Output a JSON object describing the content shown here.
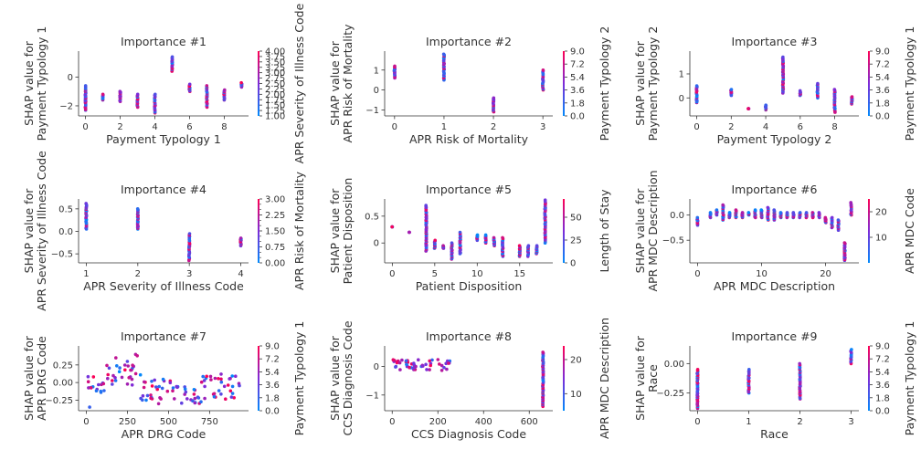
{
  "colors": {
    "low": "#008afb",
    "mid": "#7e2bd8",
    "high": "#ff0052",
    "axis": "#333333"
  },
  "chart_data": [
    {
      "type": "scatter",
      "title": "Importance #1",
      "xlabel": "Payment Typology 1",
      "ylabel": [
        "SHAP value for",
        "Payment Typology 1"
      ],
      "colorbar_label": "APR Severity of Illness Code",
      "xlim": [
        -0.4,
        9.4
      ],
      "ylim": [
        -2.7,
        1.8
      ],
      "xticks": [
        0,
        2,
        4,
        6,
        8
      ],
      "yticks": [
        -2,
        0
      ],
      "cbar_range": [
        1,
        4
      ],
      "cbar_ticks": [
        "1.00",
        "1.25",
        "1.50",
        "1.75",
        "2.00",
        "2.25",
        "2.50",
        "2.75",
        "3.00",
        "3.25",
        "3.50",
        "3.75",
        "4.00"
      ],
      "groups": [
        {
          "x": 0,
          "ymin": -2.3,
          "ymax": -0.6
        },
        {
          "x": 1,
          "ymin": -1.6,
          "ymax": -1.2
        },
        {
          "x": 2,
          "ymin": -1.7,
          "ymax": -1.0
        },
        {
          "x": 3,
          "ymin": -2.1,
          "ymax": -1.2
        },
        {
          "x": 4,
          "ymin": -2.5,
          "ymax": -1.2
        },
        {
          "x": 5,
          "ymin": 0.4,
          "ymax": 1.4
        },
        {
          "x": 6,
          "ymin": -1.0,
          "ymax": -0.5
        },
        {
          "x": 7,
          "ymin": -2.1,
          "ymax": -0.6
        },
        {
          "x": 8,
          "ymin": -1.6,
          "ymax": -0.9
        },
        {
          "x": 9,
          "ymin": -0.7,
          "ymax": -0.4
        }
      ]
    },
    {
      "type": "scatter",
      "title": "Importance #2",
      "xlabel": "APR Risk of Mortality",
      "ylabel": [
        "SHAP value for",
        "APR Risk of Mortality"
      ],
      "colorbar_label": "Payment Typology 2",
      "xlim": [
        -0.2,
        3.2
      ],
      "ylim": [
        -1.3,
        1.95
      ],
      "xticks": [
        0,
        1,
        2,
        3
      ],
      "yticks": [
        -1,
        0,
        1
      ],
      "cbar_range": [
        0,
        9
      ],
      "cbar_ticks": [
        "0.0",
        "1.8",
        "3.6",
        "5.4",
        "7.2",
        "9.0"
      ],
      "groups": [
        {
          "x": 0,
          "ymin": 0.6,
          "ymax": 1.2
        },
        {
          "x": 1,
          "ymin": 0.5,
          "ymax": 1.8
        },
        {
          "x": 2,
          "ymin": -1.1,
          "ymax": -0.4
        },
        {
          "x": 3,
          "ymin": 0.0,
          "ymax": 1.0
        }
      ]
    },
    {
      "type": "scatter",
      "title": "Importance #3",
      "xlabel": "Payment Typology 2",
      "ylabel": [
        "SHAP value for",
        "Payment Typology 2"
      ],
      "colorbar_label": "Payment Typology 1",
      "xlim": [
        -0.4,
        9.4
      ],
      "ylim": [
        -0.75,
        1.95
      ],
      "xticks": [
        0,
        2,
        4,
        6,
        8
      ],
      "yticks": [
        0,
        1
      ],
      "cbar_range": [
        0,
        9
      ],
      "cbar_ticks": [
        "0.0",
        "1.8",
        "3.6",
        "5.4",
        "7.2",
        "9.0"
      ],
      "groups": [
        {
          "x": 0,
          "ymin": -0.2,
          "ymax": 0.5
        },
        {
          "x": 2,
          "ymin": 0.1,
          "ymax": 0.35
        },
        {
          "x": 3,
          "ymin": -0.45,
          "ymax": -0.45
        },
        {
          "x": 4,
          "ymin": -0.5,
          "ymax": -0.3
        },
        {
          "x": 5,
          "ymin": 0.2,
          "ymax": 1.7
        },
        {
          "x": 6,
          "ymin": 0.1,
          "ymax": 0.3
        },
        {
          "x": 7,
          "ymin": 0.0,
          "ymax": 0.6
        },
        {
          "x": 8,
          "ymin": -0.6,
          "ymax": 0.35
        },
        {
          "x": 9,
          "ymin": -0.25,
          "ymax": 0.05
        }
      ]
    },
    {
      "type": "scatter",
      "title": "Importance #4",
      "xlabel": "APR Severity of Illness Code",
      "ylabel": [
        "SHAP value for",
        "APR Severity of Illness Code"
      ],
      "colorbar_label": "APR Risk of Mortality",
      "xlim": [
        0.85,
        4.15
      ],
      "ylim": [
        -0.7,
        0.72
      ],
      "xticks": [
        1,
        2,
        3,
        4
      ],
      "yticks": [
        -0.5,
        0.0,
        0.5
      ],
      "yticklabels": [
        "−0.5",
        "0.0",
        "0.5"
      ],
      "cbar_range": [
        0,
        3
      ],
      "cbar_ticks": [
        "0.00",
        "0.75",
        "1.50",
        "2.25",
        "3.00"
      ],
      "cbar_minor": [
        "0.25",
        "0.50",
        "1.00",
        "1.25",
        "1.75",
        "2.00",
        "2.50",
        "2.75"
      ],
      "groups": [
        {
          "x": 1,
          "ymin": 0.05,
          "ymax": 0.62
        },
        {
          "x": 2,
          "ymin": 0.05,
          "ymax": 0.5
        },
        {
          "x": 3,
          "ymin": -0.65,
          "ymax": -0.05
        },
        {
          "x": 4,
          "ymin": -0.32,
          "ymax": -0.15
        }
      ]
    },
    {
      "type": "scatter",
      "title": "Importance #5",
      "xlabel": "Patient Disposition",
      "ylabel": [
        "SHAP value for",
        "Patient Disposition"
      ],
      "colorbar_label": "Length of Stay",
      "xlim": [
        -0.9,
        18.9
      ],
      "ylim": [
        -0.37,
        0.82
      ],
      "xticks": [
        0,
        5,
        10,
        15
      ],
      "yticks": [
        0.0,
        0.5
      ],
      "cbar_range": [
        0,
        70
      ],
      "cbar_ticks": [
        "0",
        "25",
        "50"
      ],
      "groups": [
        {
          "x": 0,
          "ymin": 0.3,
          "ymax": 0.3
        },
        {
          "x": 2,
          "ymin": 0.2,
          "ymax": 0.2
        },
        {
          "x": 4,
          "ymin": -0.15,
          "ymax": 0.7
        },
        {
          "x": 5,
          "ymin": -0.1,
          "ymax": 0.05
        },
        {
          "x": 6,
          "ymin": -0.1,
          "ymax": -0.05
        },
        {
          "x": 7,
          "ymin": -0.3,
          "ymax": 0.0
        },
        {
          "x": 8,
          "ymin": -0.2,
          "ymax": 0.2
        },
        {
          "x": 10,
          "ymin": 0.05,
          "ymax": 0.15
        },
        {
          "x": 11,
          "ymin": 0.0,
          "ymax": 0.15
        },
        {
          "x": 12,
          "ymin": -0.05,
          "ymax": 0.1
        },
        {
          "x": 13,
          "ymin": -0.25,
          "ymax": 0.1
        },
        {
          "x": 15,
          "ymin": -0.25,
          "ymax": -0.05
        },
        {
          "x": 16,
          "ymin": -0.25,
          "ymax": -0.05
        },
        {
          "x": 17,
          "ymin": -0.2,
          "ymax": -0.05
        },
        {
          "x": 18,
          "ymin": 0.0,
          "ymax": 0.8
        }
      ]
    },
    {
      "type": "scatter",
      "title": "Importance #6",
      "xlabel": "APR MDC Description",
      "ylabel": [
        "SHAP value for",
        "APR MDC Description"
      ],
      "colorbar_label": "APR MDC Code",
      "xlim": [
        -1.2,
        25.2
      ],
      "ylim": [
        -0.95,
        0.32
      ],
      "xticks": [
        0,
        10,
        20
      ],
      "yticks": [
        -0.5,
        0.0
      ],
      "yticklabels": [
        "−0.5",
        "0.0"
      ],
      "cbar_range": [
        0,
        25
      ],
      "cbar_ticks": [
        "10",
        "20"
      ],
      "groups": [
        {
          "x": 0,
          "ymin": -0.2,
          "ymax": -0.05
        },
        {
          "x": 2,
          "ymin": -0.05,
          "ymax": 0.05
        },
        {
          "x": 3,
          "ymin": 0.0,
          "ymax": 0.1
        },
        {
          "x": 4,
          "ymin": -0.1,
          "ymax": 0.2
        },
        {
          "x": 5,
          "ymin": -0.05,
          "ymax": 0.05
        },
        {
          "x": 6,
          "ymin": -0.05,
          "ymax": 0.1
        },
        {
          "x": 7,
          "ymin": -0.05,
          "ymax": 0.05
        },
        {
          "x": 8,
          "ymin": 0.0,
          "ymax": 0.05
        },
        {
          "x": 9,
          "ymin": -0.05,
          "ymax": 0.1
        },
        {
          "x": 10,
          "ymin": -0.05,
          "ymax": 0.1
        },
        {
          "x": 11,
          "ymin": -0.1,
          "ymax": 0.15
        },
        {
          "x": 12,
          "ymin": -0.1,
          "ymax": 0.1
        },
        {
          "x": 13,
          "ymin": -0.05,
          "ymax": 0.05
        },
        {
          "x": 14,
          "ymin": -0.05,
          "ymax": 0.05
        },
        {
          "x": 15,
          "ymin": -0.05,
          "ymax": 0.05
        },
        {
          "x": 16,
          "ymin": -0.05,
          "ymax": 0.05
        },
        {
          "x": 17,
          "ymin": -0.05,
          "ymax": 0.05
        },
        {
          "x": 18,
          "ymin": -0.05,
          "ymax": 0.05
        },
        {
          "x": 19,
          "ymin": -0.05,
          "ymax": 0.05
        },
        {
          "x": 20,
          "ymin": -0.15,
          "ymax": -0.05
        },
        {
          "x": 21,
          "ymin": -0.25,
          "ymax": -0.05
        },
        {
          "x": 22,
          "ymin": -0.3,
          "ymax": -0.1
        },
        {
          "x": 23,
          "ymin": -0.9,
          "ymax": -0.55
        },
        {
          "x": 24,
          "ymin": 0.0,
          "ymax": 0.25
        }
      ]
    },
    {
      "type": "scatter",
      "title": "Importance #7",
      "xlabel": "APR DRG Code",
      "ylabel": [
        "SHAP value for",
        "APR DRG Code"
      ],
      "colorbar_label": "Payment Typology 1",
      "xlim": [
        -47,
        987
      ],
      "ylim": [
        -0.4,
        0.52
      ],
      "xticks": [
        0,
        250,
        500,
        750
      ],
      "yticks": [
        -0.25,
        0.0,
        0.25
      ],
      "yticklabels": [
        "−0.25",
        "0.00",
        "0.25"
      ],
      "cbar_range": [
        0,
        9
      ],
      "cbar_ticks": [
        "0.0",
        "1.8",
        "3.6",
        "5.4",
        "7.2",
        "9.0"
      ],
      "segments": [
        {
          "x0": 0,
          "x1": 120,
          "ymin": -0.15,
          "ymax": 0.15
        },
        {
          "x0": 120,
          "x1": 330,
          "ymin": -0.05,
          "ymax": 0.25
        },
        {
          "x0": 330,
          "x1": 520,
          "ymin": -0.25,
          "ymax": 0.05
        },
        {
          "x0": 520,
          "x1": 700,
          "ymin": -0.3,
          "ymax": -0.05
        },
        {
          "x0": 700,
          "x1": 940,
          "ymin": -0.25,
          "ymax": 0.1
        }
      ],
      "extras": [
        {
          "x": 300,
          "y": 0.4
        },
        {
          "x": 310,
          "y": 0.38
        },
        {
          "x": 180,
          "y": 0.35
        },
        {
          "x": 250,
          "y": 0.3
        },
        {
          "x": 820,
          "y": 0.12
        },
        {
          "x": 820,
          "y": 0.05
        },
        {
          "x": 20,
          "y": -0.35
        },
        {
          "x": 440,
          "y": -0.3
        }
      ]
    },
    {
      "type": "scatter",
      "title": "Importance #8",
      "xlabel": "CCS Diagnosis Code",
      "ylabel": [
        "SHAP value for",
        "CCS Diagnosis Code"
      ],
      "colorbar_label": "APR MDC Description",
      "xlim": [
        -33,
        703
      ],
      "ylim": [
        -1.55,
        0.72
      ],
      "xticks": [
        0,
        200,
        400,
        600
      ],
      "yticks": [
        -1,
        0
      ],
      "yticklabels": [
        "−1",
        "0"
      ],
      "cbar_range": [
        5,
        24
      ],
      "cbar_ticks": [
        "10",
        "20"
      ],
      "segments": [
        {
          "x0": 0,
          "x1": 260,
          "ymin": -0.15,
          "ymax": 0.25
        }
      ],
      "groups": [
        {
          "x": 660,
          "ymin": -1.4,
          "ymax": 0.5
        }
      ]
    },
    {
      "type": "scatter",
      "title": "Importance #9",
      "xlabel": "Race",
      "ylabel": [
        "SHAP value for",
        "Race"
      ],
      "colorbar_label": "Payment Typology 1",
      "xlim": [
        -0.15,
        3.15
      ],
      "ylim": [
        -0.4,
        0.15
      ],
      "xticks": [
        0,
        1,
        2,
        3
      ],
      "yticks": [
        -0.25,
        0.0
      ],
      "yticklabels": [
        "−0.25",
        "0.00"
      ],
      "cbar_range": [
        0,
        9
      ],
      "cbar_ticks": [
        "0.0",
        "1.8",
        "3.6",
        "5.4",
        "7.2",
        "9.0"
      ],
      "groups": [
        {
          "x": 0,
          "ymin": -0.38,
          "ymax": -0.05
        },
        {
          "x": 1,
          "ymin": -0.25,
          "ymax": -0.05
        },
        {
          "x": 2,
          "ymin": -0.3,
          "ymax": 0.0
        },
        {
          "x": 3,
          "ymin": 0.0,
          "ymax": 0.12
        }
      ]
    }
  ]
}
